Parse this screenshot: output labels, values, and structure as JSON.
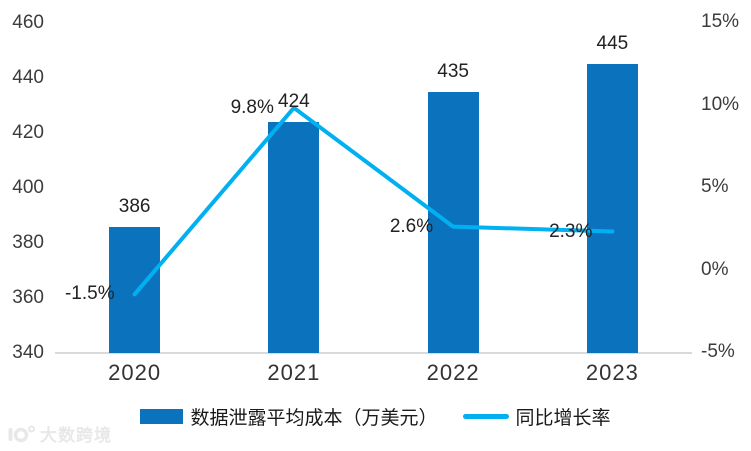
{
  "chart_data": {
    "type": "bar+line",
    "title": "",
    "categories": [
      "2020",
      "2021",
      "2022",
      "2023"
    ],
    "series": [
      {
        "name": "数据泄露平均成本（万美元）",
        "type": "bar",
        "axis": "left",
        "color": "#0b73be",
        "values": [
          386,
          424,
          435,
          445
        ],
        "labels": [
          "386",
          "424",
          "435",
          "445"
        ]
      },
      {
        "name": "同比增长率",
        "type": "line",
        "axis": "right",
        "color": "#00b0f0",
        "values": [
          -1.5,
          9.8,
          2.6,
          2.3
        ],
        "labels": [
          "-1.5%",
          "9.8%",
          "2.6%",
          "2.3%"
        ]
      }
    ],
    "left_axis": {
      "min": 340,
      "max": 460,
      "step": 20,
      "ticks": [
        {
          "label": "340",
          "value": 340
        },
        {
          "label": "360",
          "value": 360
        },
        {
          "label": "380",
          "value": 380
        },
        {
          "label": "400",
          "value": 400
        },
        {
          "label": "420",
          "value": 420
        },
        {
          "label": "440",
          "value": 440
        },
        {
          "label": "460",
          "value": 460
        }
      ]
    },
    "right_axis": {
      "min": -5,
      "max": 15,
      "step": 5,
      "ticks": [
        {
          "label": "-5%",
          "value": -5
        },
        {
          "label": "0%",
          "value": 0
        },
        {
          "label": "5%",
          "value": 5
        },
        {
          "label": "10%",
          "value": 10
        },
        {
          "label": "15%",
          "value": 15
        }
      ]
    },
    "grid": false,
    "legend_position": "bottom"
  },
  "colors": {
    "bar": "#0b73be",
    "line": "#00b0f0",
    "axis_line": "#d9d9d9",
    "tick_text": "#3c3c3c",
    "label_text": "#222222",
    "watermark": "#e8e8e8"
  },
  "watermark": {
    "text": "大数跨境"
  }
}
